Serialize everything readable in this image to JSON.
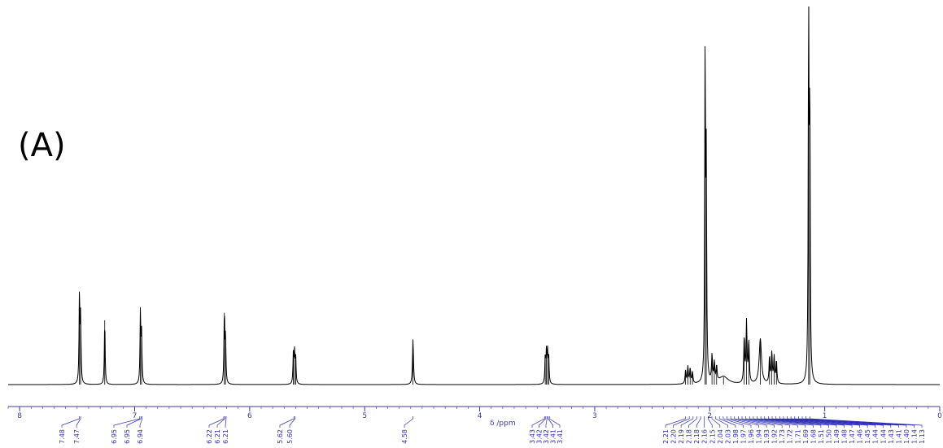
{
  "panel": {
    "label": "(A)"
  },
  "chart_data": {
    "type": "line",
    "title": "",
    "xlabel": "δ /ppm",
    "ylabel": "",
    "xlim": [
      8.1,
      0
    ],
    "x_reversed": true,
    "ylim": [
      0,
      1
    ],
    "grid": false,
    "colors": {
      "trace": "#000000",
      "axis": "#3b3ba8",
      "labels": "#2f2fb8"
    },
    "x_ticks": [
      8,
      7,
      6,
      5,
      4,
      3,
      2,
      1,
      0
    ],
    "peaks": [
      {
        "ppm": 7.48,
        "height": 0.24,
        "width": 0.004
      },
      {
        "ppm": 7.47,
        "height": 0.17,
        "width": 0.004
      },
      {
        "ppm": 7.26,
        "height": 0.17,
        "width": 0.004
      },
      {
        "ppm": 6.95,
        "height": 0.19,
        "width": 0.004
      },
      {
        "ppm": 6.94,
        "height": 0.13,
        "width": 0.004
      },
      {
        "ppm": 6.22,
        "height": 0.19,
        "width": 0.004
      },
      {
        "ppm": 6.21,
        "height": 0.12,
        "width": 0.004
      },
      {
        "ppm": 5.62,
        "height": 0.08,
        "width": 0.004
      },
      {
        "ppm": 5.61,
        "height": 0.08,
        "width": 0.004
      },
      {
        "ppm": 5.6,
        "height": 0.07,
        "width": 0.004
      },
      {
        "ppm": 4.58,
        "height": 0.12,
        "width": 0.005
      },
      {
        "ppm": 3.43,
        "height": 0.07,
        "width": 0.004
      },
      {
        "ppm": 3.42,
        "height": 0.08,
        "width": 0.004
      },
      {
        "ppm": 3.41,
        "height": 0.08,
        "width": 0.004
      },
      {
        "ppm": 3.4,
        "height": 0.07,
        "width": 0.004
      },
      {
        "ppm": 2.21,
        "height": 0.035,
        "width": 0.005
      },
      {
        "ppm": 2.19,
        "height": 0.045,
        "width": 0.005
      },
      {
        "ppm": 2.17,
        "height": 0.04,
        "width": 0.005
      },
      {
        "ppm": 2.15,
        "height": 0.03,
        "width": 0.005
      },
      {
        "ppm": 2.04,
        "height": 0.87,
        "width": 0.004
      },
      {
        "ppm": 2.03,
        "height": 0.55,
        "width": 0.004
      },
      {
        "ppm": 1.98,
        "height": 0.07,
        "width": 0.005
      },
      {
        "ppm": 1.96,
        "height": 0.05,
        "width": 0.005
      },
      {
        "ppm": 1.94,
        "height": 0.04,
        "width": 0.005
      },
      {
        "ppm": 1.88,
        "height": 0.02,
        "width": 0.05
      },
      {
        "ppm": 1.7,
        "height": 0.12,
        "width": 0.005
      },
      {
        "ppm": 1.68,
        "height": 0.16,
        "width": 0.005
      },
      {
        "ppm": 1.66,
        "height": 0.11,
        "width": 0.005
      },
      {
        "ppm": 1.56,
        "height": 0.12,
        "width": 0.012
      },
      {
        "ppm": 1.48,
        "height": 0.07,
        "width": 0.005
      },
      {
        "ppm": 1.46,
        "height": 0.08,
        "width": 0.005
      },
      {
        "ppm": 1.44,
        "height": 0.07,
        "width": 0.005
      },
      {
        "ppm": 1.42,
        "height": 0.06,
        "width": 0.005
      },
      {
        "ppm": 1.14,
        "height": 1.0,
        "width": 0.004
      },
      {
        "ppm": 1.13,
        "height": 0.72,
        "width": 0.004
      }
    ],
    "peak_labels": [
      {
        "group": "7.4",
        "labels": [
          "7.48",
          "7.47"
        ]
      },
      {
        "group": "6.9",
        "labels": [
          "6.95",
          "6.95",
          "6.94"
        ]
      },
      {
        "group": "6.2",
        "labels": [
          "6.22",
          "6.21",
          "6.21"
        ]
      },
      {
        "group": "5.6",
        "labels": [
          "5.62",
          "5.60"
        ]
      },
      {
        "group": "4.6",
        "labels": [
          "4.58"
        ]
      },
      {
        "group": "3.4",
        "labels": [
          "3.43",
          "3.42",
          "3.42",
          "3.41",
          "3.41"
        ]
      },
      {
        "group": "2-1",
        "labels": [
          "2.21",
          "2.20",
          "2.19",
          "2.18",
          "2.18",
          "2.16",
          "2.15",
          "2.04",
          "2.03",
          "1.98",
          "1.97",
          "1.96",
          "1.94",
          "1.93",
          "1.92",
          "1.73",
          "1.72",
          "1.71",
          "1.69",
          "1.68",
          "1.51",
          "1.50",
          "1.49",
          "1.48",
          "1.47",
          "1.46",
          "1.45",
          "1.44",
          "1.44",
          "1.43",
          "1.41",
          "1.40",
          "1.14",
          "1.13"
        ]
      }
    ]
  }
}
